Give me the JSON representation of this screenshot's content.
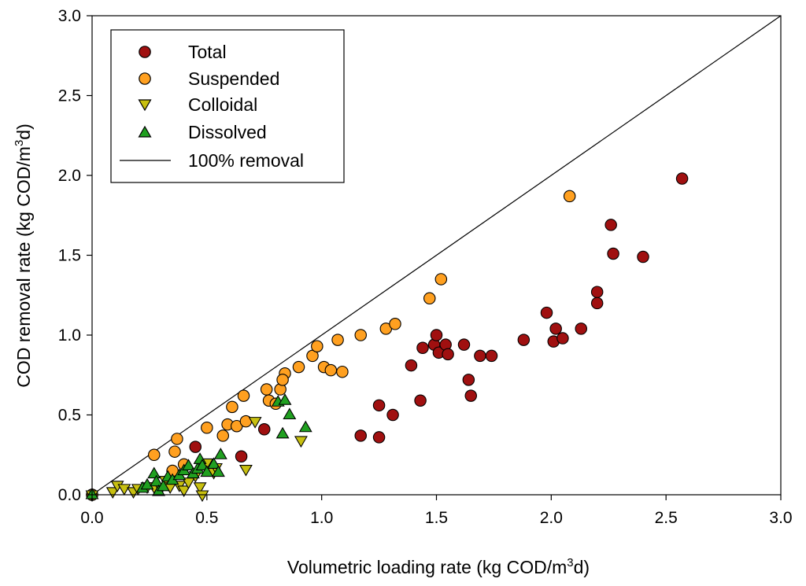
{
  "chart_data": {
    "type": "scatter",
    "title": "",
    "xlabel": "Volumetric loading rate (kg COD/m",
    "xlabel_sup": "3",
    "xlabel_suffix": "d)",
    "ylabel": "COD removal rate (kg COD/m",
    "ylabel_sup": "3",
    "ylabel_suffix": "d)",
    "xlim": [
      0,
      3
    ],
    "ylim": [
      0,
      3
    ],
    "xticks": [
      "0.0",
      "0.5",
      "1.0",
      "1.5",
      "2.0",
      "2.5",
      "3.0"
    ],
    "yticks": [
      "0.0",
      "0.5",
      "1.0",
      "1.5",
      "2.0",
      "2.5",
      "3.0"
    ],
    "legend_position": "top-left",
    "series": [
      {
        "name": "Total",
        "marker": "circle",
        "color": "#a01010",
        "points": [
          [
            0.0,
            0.0
          ],
          [
            0.45,
            0.3
          ],
          [
            0.65,
            0.24
          ],
          [
            0.75,
            0.41
          ],
          [
            1.17,
            0.37
          ],
          [
            1.25,
            0.56
          ],
          [
            1.25,
            0.36
          ],
          [
            1.31,
            0.5
          ],
          [
            1.39,
            0.81
          ],
          [
            1.43,
            0.59
          ],
          [
            1.44,
            0.92
          ],
          [
            1.49,
            0.94
          ],
          [
            1.5,
            1.0
          ],
          [
            1.51,
            0.89
          ],
          [
            1.54,
            0.94
          ],
          [
            1.55,
            0.88
          ],
          [
            1.62,
            0.94
          ],
          [
            1.64,
            0.72
          ],
          [
            1.65,
            0.62
          ],
          [
            1.69,
            0.87
          ],
          [
            1.74,
            0.87
          ],
          [
            1.88,
            0.97
          ],
          [
            1.98,
            1.14
          ],
          [
            2.01,
            0.96
          ],
          [
            2.02,
            1.04
          ],
          [
            2.05,
            0.98
          ],
          [
            2.13,
            1.04
          ],
          [
            2.2,
            1.27
          ],
          [
            2.2,
            1.2
          ],
          [
            2.26,
            1.69
          ],
          [
            2.27,
            1.51
          ],
          [
            2.4,
            1.49
          ],
          [
            2.57,
            1.98
          ]
        ]
      },
      {
        "name": "Suspended",
        "marker": "circle",
        "color": "#ffa020",
        "points": [
          [
            0.0,
            0.0
          ],
          [
            0.27,
            0.25
          ],
          [
            0.35,
            0.15
          ],
          [
            0.36,
            0.27
          ],
          [
            0.37,
            0.35
          ],
          [
            0.4,
            0.19
          ],
          [
            0.5,
            0.42
          ],
          [
            0.57,
            0.37
          ],
          [
            0.59,
            0.44
          ],
          [
            0.61,
            0.55
          ],
          [
            0.63,
            0.43
          ],
          [
            0.66,
            0.62
          ],
          [
            0.67,
            0.46
          ],
          [
            0.76,
            0.66
          ],
          [
            0.77,
            0.59
          ],
          [
            0.8,
            0.57
          ],
          [
            0.82,
            0.66
          ],
          [
            0.84,
            0.76
          ],
          [
            0.83,
            0.72
          ],
          [
            0.9,
            0.8
          ],
          [
            0.96,
            0.87
          ],
          [
            0.98,
            0.93
          ],
          [
            1.01,
            0.8
          ],
          [
            1.04,
            0.78
          ],
          [
            1.07,
            0.97
          ],
          [
            1.09,
            0.77
          ],
          [
            1.17,
            1.0
          ],
          [
            1.28,
            1.04
          ],
          [
            1.32,
            1.07
          ],
          [
            1.47,
            1.23
          ],
          [
            1.52,
            1.35
          ],
          [
            2.08,
            1.87
          ]
        ]
      },
      {
        "name": "Colloidal",
        "marker": "triangle-down",
        "color": "#c8c010",
        "points": [
          [
            0.0,
            0.0
          ],
          [
            0.09,
            0.02
          ],
          [
            0.11,
            0.06
          ],
          [
            0.14,
            0.04
          ],
          [
            0.18,
            0.02
          ],
          [
            0.2,
            0.04
          ],
          [
            0.24,
            0.05
          ],
          [
            0.27,
            0.05
          ],
          [
            0.3,
            0.04
          ],
          [
            0.32,
            0.09
          ],
          [
            0.34,
            0.05
          ],
          [
            0.38,
            0.06
          ],
          [
            0.4,
            0.03
          ],
          [
            0.42,
            0.08
          ],
          [
            0.45,
            0.12
          ],
          [
            0.47,
            0.05
          ],
          [
            0.48,
            0.0
          ],
          [
            0.5,
            0.2
          ],
          [
            0.53,
            0.14
          ],
          [
            0.54,
            0.17
          ],
          [
            0.67,
            0.16
          ],
          [
            0.71,
            0.46
          ],
          [
            0.91,
            0.34
          ]
        ]
      },
      {
        "name": "Dissolved",
        "marker": "triangle-up",
        "color": "#20a020",
        "points": [
          [
            0.0,
            0.0
          ],
          [
            0.22,
            0.04
          ],
          [
            0.24,
            0.06
          ],
          [
            0.27,
            0.13
          ],
          [
            0.28,
            0.08
          ],
          [
            0.29,
            0.02
          ],
          [
            0.31,
            0.05
          ],
          [
            0.33,
            0.11
          ],
          [
            0.35,
            0.09
          ],
          [
            0.38,
            0.12
          ],
          [
            0.4,
            0.15
          ],
          [
            0.42,
            0.18
          ],
          [
            0.44,
            0.13
          ],
          [
            0.46,
            0.16
          ],
          [
            0.47,
            0.22
          ],
          [
            0.48,
            0.18
          ],
          [
            0.5,
            0.14
          ],
          [
            0.53,
            0.19
          ],
          [
            0.55,
            0.14
          ],
          [
            0.56,
            0.25
          ],
          [
            0.81,
            0.58
          ],
          [
            0.83,
            0.38
          ],
          [
            0.84,
            0.59
          ],
          [
            0.86,
            0.5
          ],
          [
            0.93,
            0.42
          ]
        ]
      }
    ],
    "reference_line": {
      "name": "100% removal",
      "from": [
        0,
        0
      ],
      "to": [
        3,
        3
      ],
      "color": "#000000"
    }
  }
}
